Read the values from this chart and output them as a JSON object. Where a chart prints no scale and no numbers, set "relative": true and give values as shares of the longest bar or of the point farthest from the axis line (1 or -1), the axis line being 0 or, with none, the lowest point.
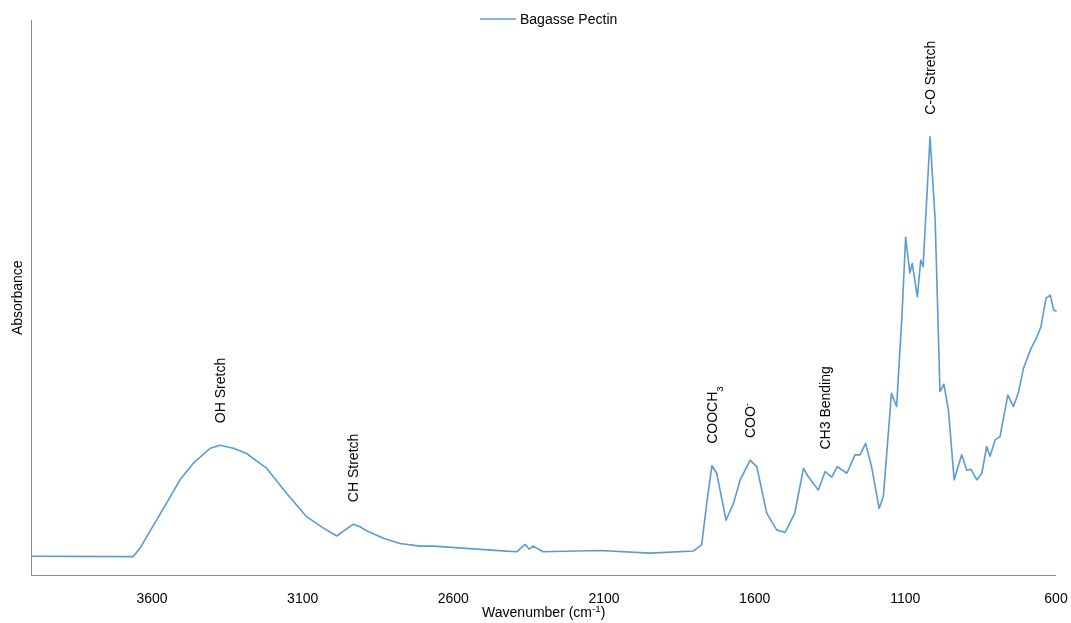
{
  "chart_data": {
    "type": "line",
    "relative": true,
    "xlabel": "Wavenumber (cm$^{-1}$)",
    "ylabel": "Absorbance",
    "xlim": [
      4000,
      600
    ],
    "xticks": [
      3600,
      3100,
      2600,
      2100,
      1600,
      1100,
      600
    ],
    "legend": "top",
    "grid": false,
    "marker": "none",
    "line_style": "solid",
    "series": [
      {
        "name": "Bagasse Pectin",
        "color": "#5b9bd5",
        "x": [
          4000,
          3663,
          3640,
          3618,
          3562,
          3507,
          3463,
          3407,
          3374,
          3330,
          3286,
          3219,
          3153,
          3087,
          3031,
          2987,
          2959,
          2932,
          2910,
          2888,
          2832,
          2777,
          2711,
          2666,
          2390,
          2362,
          2348,
          2335,
          2302,
          2113,
          1947,
          1803,
          1776,
          1759,
          1742,
          1726,
          1695,
          1670,
          1648,
          1615,
          1593,
          1560,
          1527,
          1499,
          1467,
          1438,
          1422,
          1389,
          1366,
          1344,
          1326,
          1294,
          1267,
          1250,
          1232,
          1212,
          1187,
          1173,
          1146,
          1129,
          1112,
          1099,
          1085,
          1077,
          1060,
          1049,
          1041,
          1018,
          1001,
          985,
          972,
          957,
          938,
          913,
          896,
          882,
          863,
          846,
          830,
          819,
          802,
          786,
          760,
          741,
          724,
          708,
          685,
          663,
          650,
          633,
          619,
          608,
          600
        ],
        "values": [
          0.044,
          0.043,
          0.062,
          0.088,
          0.153,
          0.218,
          0.256,
          0.29,
          0.297,
          0.29,
          0.278,
          0.244,
          0.187,
          0.134,
          0.108,
          0.09,
          0.104,
          0.117,
          0.111,
          0.102,
          0.085,
          0.073,
          0.067,
          0.067,
          0.054,
          0.071,
          0.06,
          0.067,
          0.054,
          0.057,
          0.051,
          0.056,
          0.07,
          0.165,
          0.25,
          0.233,
          0.126,
          0.165,
          0.218,
          0.263,
          0.248,
          0.142,
          0.104,
          0.098,
          0.142,
          0.244,
          0.225,
          0.195,
          0.237,
          0.224,
          0.248,
          0.233,
          0.275,
          0.275,
          0.301,
          0.248,
          0.153,
          0.18,
          0.415,
          0.385,
          0.582,
          0.771,
          0.689,
          0.711,
          0.635,
          0.719,
          0.704,
          1.0,
          0.81,
          0.419,
          0.436,
          0.377,
          0.218,
          0.275,
          0.24,
          0.242,
          0.218,
          0.233,
          0.294,
          0.272,
          0.309,
          0.316,
          0.411,
          0.385,
          0.419,
          0.472,
          0.514,
          0.544,
          0.567,
          0.632,
          0.639,
          0.605,
          0.603
        ]
      }
    ],
    "annotations": [
      {
        "text": "OH Sretch",
        "x": 3374,
        "y": 0.297
      },
      {
        "text": "CH Stretch",
        "x": 2932,
        "y": 0.117
      },
      {
        "text": "COOCH$_{3}$",
        "x": 1742,
        "y": 0.25
      },
      {
        "text": "COO$^{-}$",
        "x": 1615,
        "y": 0.263
      },
      {
        "text": "CH3 Bending",
        "x": 1366,
        "y": 0.237
      },
      {
        "text": "C-O Stretch",
        "x": 1018,
        "y": 1.0
      }
    ]
  }
}
